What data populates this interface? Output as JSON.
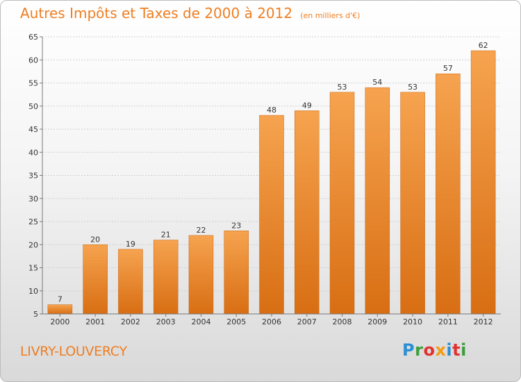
{
  "title": {
    "main": "Autres Impôts et Taxes de 2000 à 2012",
    "unit": "(en milliers d'€)"
  },
  "commune": "LIVRY-LOUVERCY",
  "logo": {
    "text": "Proxiti",
    "letter_colors": [
      "#2b8fd3",
      "#3b9e3b",
      "#e0322f",
      "#f39c12",
      "#2b8fd3",
      "#e0322f",
      "#3b9e3b"
    ]
  },
  "colors": {
    "bar_top": "#f6a34f",
    "bar_bottom": "#d86e13",
    "bar_edge": "#c86410",
    "accent": "#ee7e22"
  },
  "chart_data": {
    "type": "bar",
    "title": "Autres Impôts et Taxes de 2000 à 2012",
    "subtitle": "(en milliers d'€)",
    "xlabel": "",
    "ylabel": "",
    "categories": [
      "2000",
      "2001",
      "2002",
      "2003",
      "2004",
      "2005",
      "2006",
      "2007",
      "2008",
      "2009",
      "2010",
      "2011",
      "2012"
    ],
    "values": [
      7,
      20,
      19,
      21,
      22,
      23,
      48,
      49,
      53,
      54,
      53,
      57,
      62
    ],
    "ylim": [
      5,
      65
    ],
    "yticks": [
      5,
      10,
      15,
      20,
      25,
      30,
      35,
      40,
      45,
      50,
      55,
      60,
      65
    ],
    "grid": true,
    "legend": "none"
  }
}
